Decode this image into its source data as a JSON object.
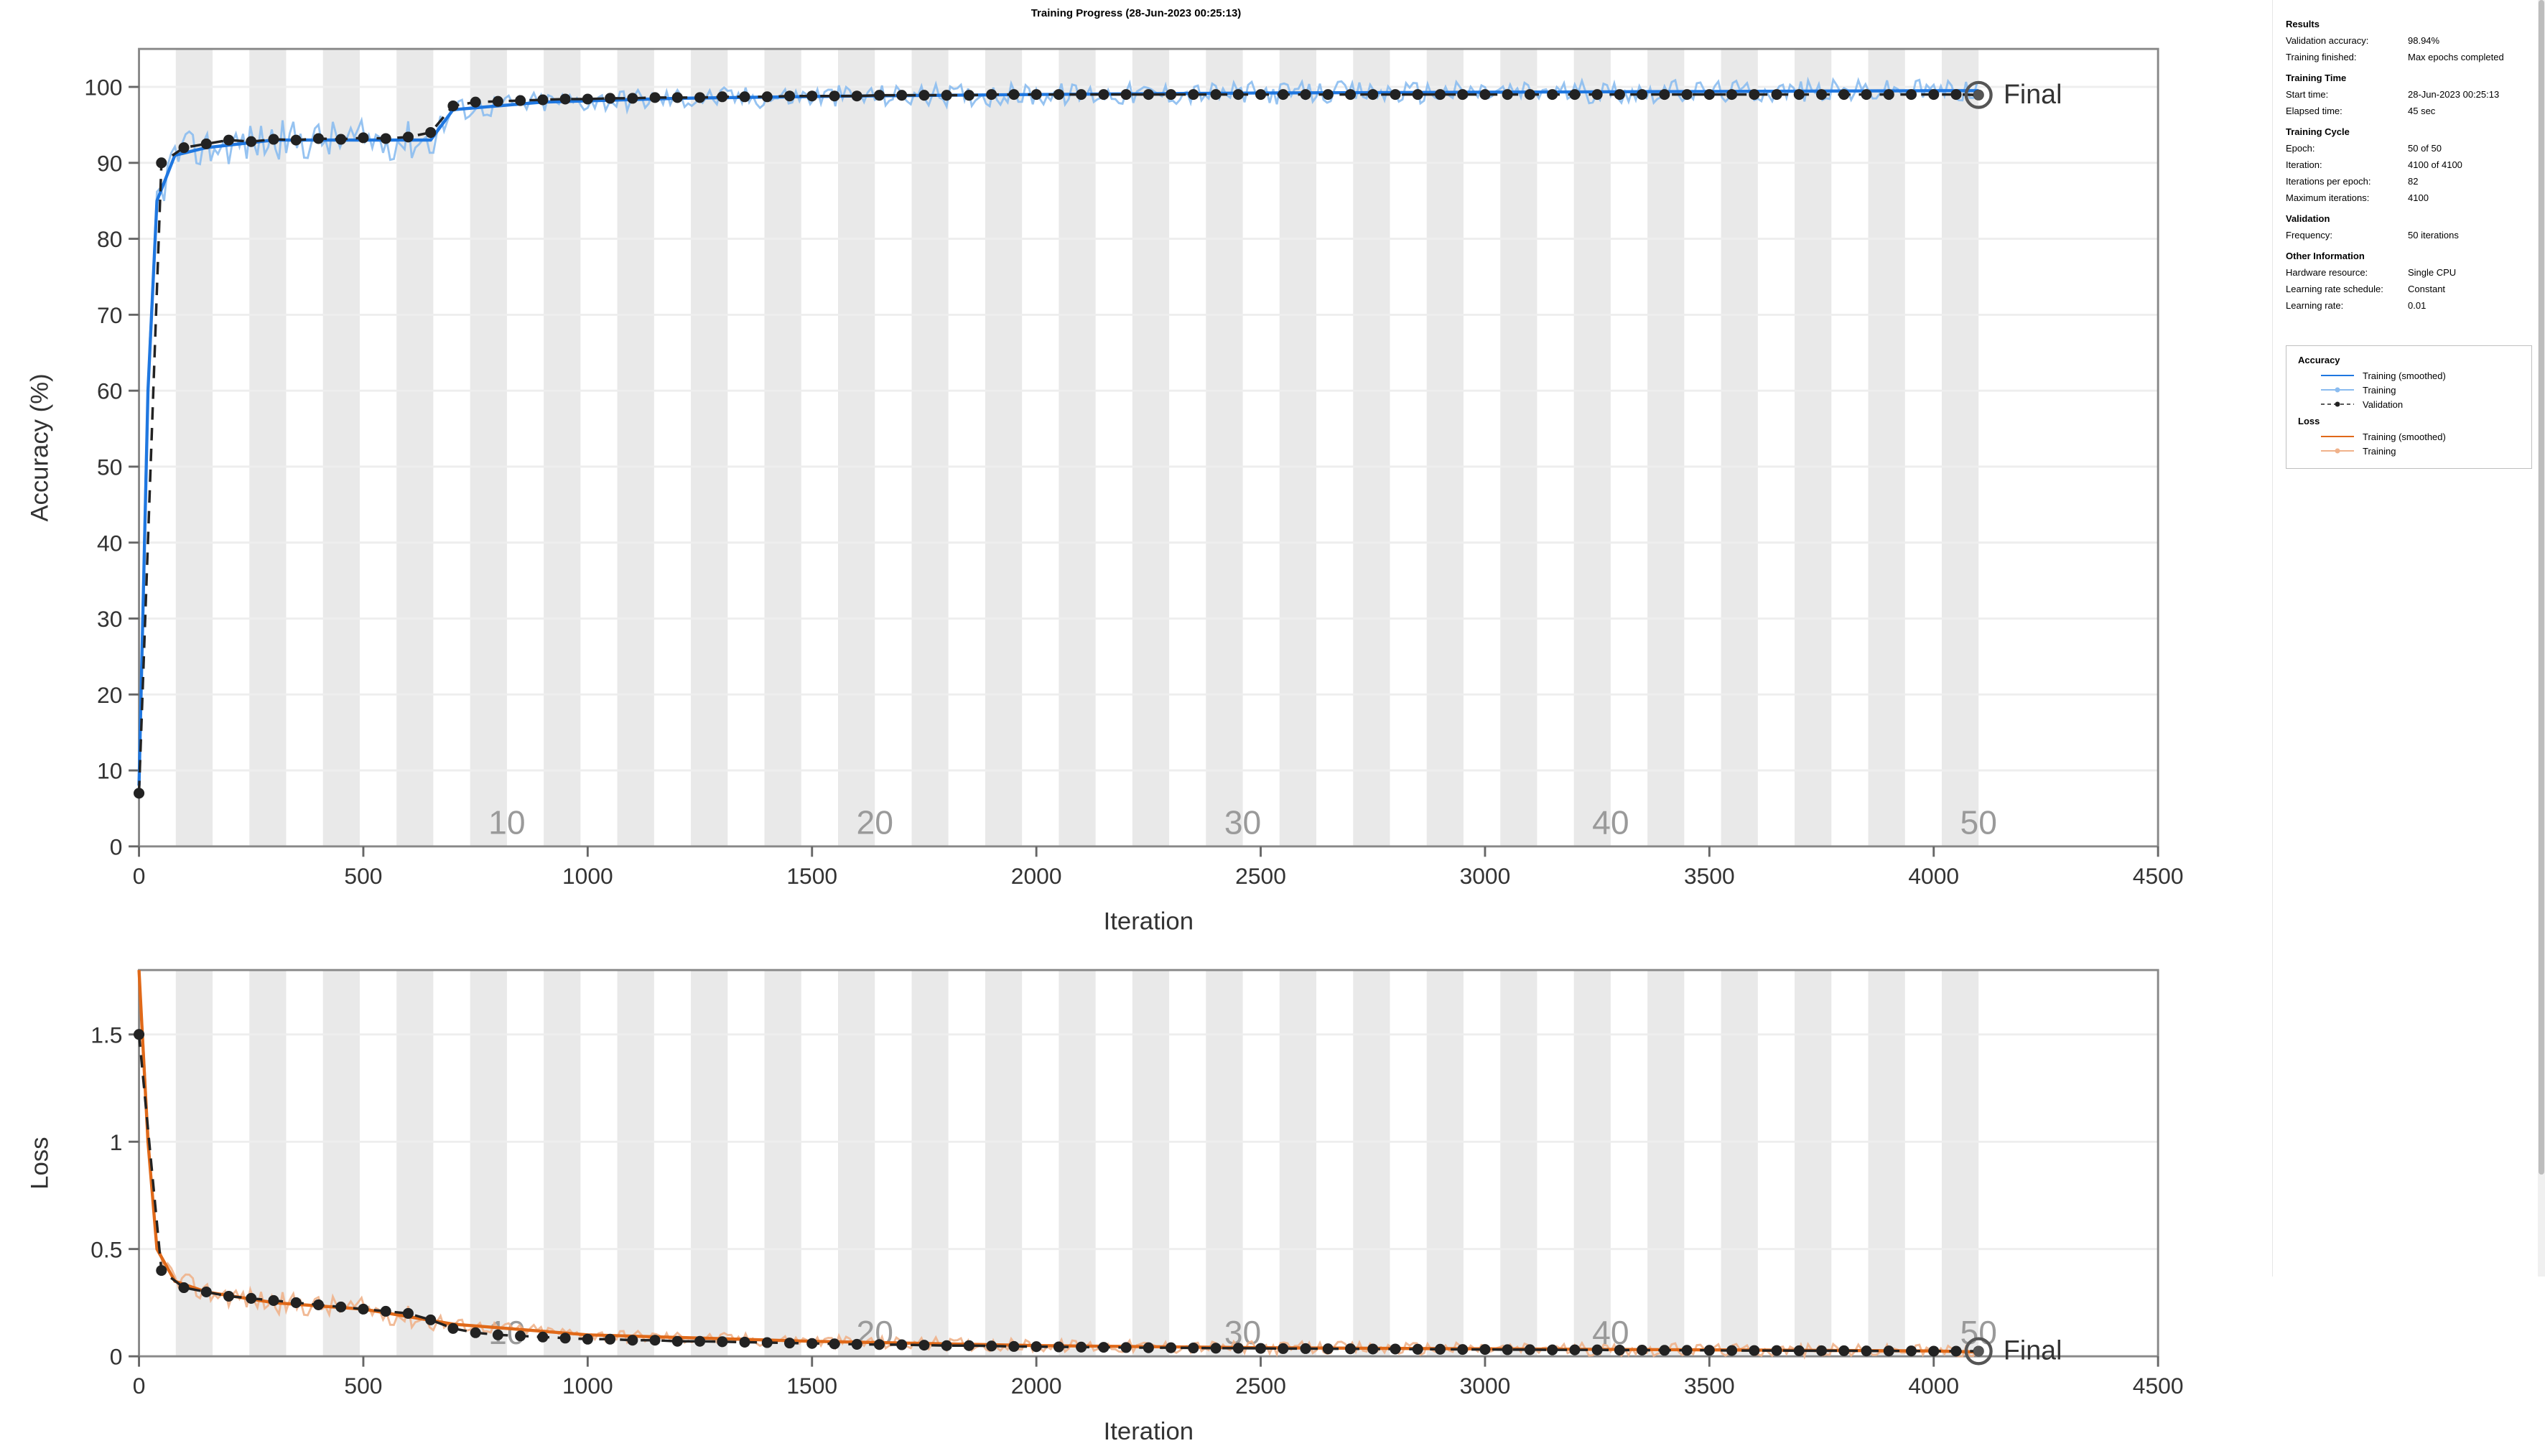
{
  "title": "Training Progress (28-Jun-2023 00:25:13)",
  "accuracy_chart": {
    "type": "line",
    "xlabel": "Iteration",
    "ylabel": "Accuracy (%)",
    "xlim": [
      0,
      4500
    ],
    "ylim": [
      0,
      105
    ],
    "xticks": [
      0,
      500,
      1000,
      1500,
      2000,
      2500,
      3000,
      3500,
      4000,
      4500
    ],
    "yticks": [
      0,
      10,
      20,
      30,
      40,
      50,
      60,
      70,
      80,
      90,
      100
    ],
    "epoch_markers": [
      10,
      20,
      30,
      40,
      50
    ],
    "iterations_per_epoch": 82,
    "max_iterations": 4100,
    "band_color": "#e9e9e9",
    "grid_color": "#d9d9d9",
    "axis_color": "#666666",
    "text_color": "#555555",
    "training_color": "#1f77e0",
    "training_light_color": "#8bbcf0",
    "validation_color": "#222222",
    "final_marker_color": "#888888",
    "final_label": "Final",
    "training_smoothed": [
      [
        0,
        8
      ],
      [
        20,
        60
      ],
      [
        40,
        85
      ],
      [
        80,
        91
      ],
      [
        150,
        92
      ],
      [
        300,
        93
      ],
      [
        500,
        93
      ],
      [
        650,
        93
      ],
      [
        700,
        97
      ],
      [
        900,
        98
      ],
      [
        1200,
        98.5
      ],
      [
        1600,
        98.8
      ],
      [
        2000,
        99
      ],
      [
        2500,
        99.2
      ],
      [
        3000,
        99.3
      ],
      [
        3500,
        99.4
      ],
      [
        4000,
        99.5
      ],
      [
        4100,
        99.5
      ]
    ],
    "training_noise_band": 3,
    "validation": [
      [
        0,
        7
      ],
      [
        50,
        90
      ],
      [
        100,
        92
      ],
      [
        150,
        92.5
      ],
      [
        200,
        93
      ],
      [
        250,
        92.8
      ],
      [
        300,
        93.1
      ],
      [
        350,
        93
      ],
      [
        400,
        93.2
      ],
      [
        450,
        93.1
      ],
      [
        500,
        93.3
      ],
      [
        550,
        93.2
      ],
      [
        600,
        93.4
      ],
      [
        650,
        94
      ],
      [
        700,
        97.5
      ],
      [
        750,
        98
      ],
      [
        800,
        98.1
      ],
      [
        850,
        98.2
      ],
      [
        900,
        98.3
      ],
      [
        950,
        98.4
      ],
      [
        1000,
        98.4
      ],
      [
        1050,
        98.5
      ],
      [
        1100,
        98.5
      ],
      [
        1150,
        98.6
      ],
      [
        1200,
        98.6
      ],
      [
        1250,
        98.6
      ],
      [
        1300,
        98.7
      ],
      [
        1350,
        98.7
      ],
      [
        1400,
        98.7
      ],
      [
        1450,
        98.8
      ],
      [
        1500,
        98.8
      ],
      [
        1550,
        98.8
      ],
      [
        1600,
        98.8
      ],
      [
        1650,
        98.9
      ],
      [
        1700,
        98.9
      ],
      [
        1750,
        98.9
      ],
      [
        1800,
        98.9
      ],
      [
        1850,
        98.9
      ],
      [
        1900,
        99
      ],
      [
        1950,
        99
      ],
      [
        2000,
        99
      ],
      [
        2050,
        99
      ],
      [
        2100,
        99
      ],
      [
        2150,
        99
      ],
      [
        2200,
        99
      ],
      [
        2250,
        99
      ],
      [
        2300,
        99
      ],
      [
        2350,
        99
      ],
      [
        2400,
        99
      ],
      [
        2450,
        99
      ],
      [
        2500,
        99
      ],
      [
        2550,
        99
      ],
      [
        2600,
        99
      ],
      [
        2650,
        99
      ],
      [
        2700,
        99
      ],
      [
        2750,
        99
      ],
      [
        2800,
        99
      ],
      [
        2850,
        99
      ],
      [
        2900,
        99
      ],
      [
        2950,
        99
      ],
      [
        3000,
        99
      ],
      [
        3050,
        99
      ],
      [
        3100,
        99
      ],
      [
        3150,
        99
      ],
      [
        3200,
        99
      ],
      [
        3250,
        99
      ],
      [
        3300,
        99
      ],
      [
        3350,
        99
      ],
      [
        3400,
        99
      ],
      [
        3450,
        99
      ],
      [
        3500,
        99
      ],
      [
        3550,
        99
      ],
      [
        3600,
        99
      ],
      [
        3650,
        99
      ],
      [
        3700,
        99
      ],
      [
        3750,
        99
      ],
      [
        3800,
        99
      ],
      [
        3850,
        99
      ],
      [
        3900,
        99
      ],
      [
        3950,
        99
      ],
      [
        4000,
        99
      ],
      [
        4050,
        99
      ],
      [
        4100,
        98.94
      ]
    ]
  },
  "loss_chart": {
    "type": "line",
    "xlabel": "Iteration",
    "ylabel": "Loss",
    "xlim": [
      0,
      4500
    ],
    "ylim": [
      0,
      1.8
    ],
    "xticks": [
      0,
      500,
      1000,
      1500,
      2000,
      2500,
      3000,
      3500,
      4000,
      4500
    ],
    "yticks": [
      0,
      0.5,
      1,
      1.5
    ],
    "epoch_markers": [
      10,
      20,
      30,
      40,
      50
    ],
    "iterations_per_epoch": 82,
    "max_iterations": 4100,
    "band_color": "#e9e9e9",
    "training_color": "#e06919",
    "training_light_color": "#f0b28b",
    "validation_color": "#222222",
    "final_label": "Final",
    "training_smoothed": [
      [
        0,
        1.8
      ],
      [
        20,
        1.0
      ],
      [
        40,
        0.5
      ],
      [
        80,
        0.35
      ],
      [
        150,
        0.3
      ],
      [
        300,
        0.25
      ],
      [
        500,
        0.22
      ],
      [
        700,
        0.15
      ],
      [
        1000,
        0.1
      ],
      [
        1500,
        0.07
      ],
      [
        2000,
        0.05
      ],
      [
        2500,
        0.04
      ],
      [
        3000,
        0.035
      ],
      [
        3500,
        0.03
      ],
      [
        4000,
        0.025
      ],
      [
        4100,
        0.02
      ]
    ],
    "training_noise_band": 0.06,
    "validation": [
      [
        0,
        1.5
      ],
      [
        50,
        0.4
      ],
      [
        100,
        0.32
      ],
      [
        150,
        0.3
      ],
      [
        200,
        0.28
      ],
      [
        250,
        0.27
      ],
      [
        300,
        0.26
      ],
      [
        350,
        0.25
      ],
      [
        400,
        0.24
      ],
      [
        450,
        0.23
      ],
      [
        500,
        0.22
      ],
      [
        550,
        0.21
      ],
      [
        600,
        0.2
      ],
      [
        650,
        0.17
      ],
      [
        700,
        0.13
      ],
      [
        750,
        0.11
      ],
      [
        800,
        0.1
      ],
      [
        850,
        0.095
      ],
      [
        900,
        0.09
      ],
      [
        950,
        0.085
      ],
      [
        1000,
        0.08
      ],
      [
        1050,
        0.08
      ],
      [
        1100,
        0.075
      ],
      [
        1150,
        0.075
      ],
      [
        1200,
        0.07
      ],
      [
        1250,
        0.07
      ],
      [
        1300,
        0.068
      ],
      [
        1350,
        0.066
      ],
      [
        1400,
        0.064
      ],
      [
        1450,
        0.062
      ],
      [
        1500,
        0.06
      ],
      [
        1550,
        0.058
      ],
      [
        1600,
        0.056
      ],
      [
        1650,
        0.055
      ],
      [
        1700,
        0.054
      ],
      [
        1750,
        0.052
      ],
      [
        1800,
        0.05
      ],
      [
        1850,
        0.05
      ],
      [
        1900,
        0.048
      ],
      [
        1950,
        0.046
      ],
      [
        2000,
        0.045
      ],
      [
        2050,
        0.044
      ],
      [
        2100,
        0.043
      ],
      [
        2150,
        0.042
      ],
      [
        2200,
        0.041
      ],
      [
        2250,
        0.04
      ],
      [
        2300,
        0.04
      ],
      [
        2350,
        0.039
      ],
      [
        2400,
        0.038
      ],
      [
        2450,
        0.038
      ],
      [
        2500,
        0.037
      ],
      [
        2550,
        0.036
      ],
      [
        2600,
        0.036
      ],
      [
        2650,
        0.035
      ],
      [
        2700,
        0.035
      ],
      [
        2750,
        0.034
      ],
      [
        2800,
        0.034
      ],
      [
        2850,
        0.033
      ],
      [
        2900,
        0.033
      ],
      [
        2950,
        0.032
      ],
      [
        3000,
        0.032
      ],
      [
        3050,
        0.031
      ],
      [
        3100,
        0.031
      ],
      [
        3150,
        0.03
      ],
      [
        3200,
        0.03
      ],
      [
        3250,
        0.03
      ],
      [
        3300,
        0.029
      ],
      [
        3350,
        0.029
      ],
      [
        3400,
        0.028
      ],
      [
        3450,
        0.028
      ],
      [
        3500,
        0.028
      ],
      [
        3550,
        0.027
      ],
      [
        3600,
        0.027
      ],
      [
        3650,
        0.027
      ],
      [
        3700,
        0.026
      ],
      [
        3750,
        0.026
      ],
      [
        3800,
        0.026
      ],
      [
        3850,
        0.025
      ],
      [
        3900,
        0.025
      ],
      [
        3950,
        0.025
      ],
      [
        4000,
        0.024
      ],
      [
        4050,
        0.024
      ],
      [
        4100,
        0.024
      ]
    ]
  },
  "results": {
    "heading": "Results",
    "rows": [
      {
        "label": "Validation accuracy:",
        "value": "98.94%"
      },
      {
        "label": "Training finished:",
        "value": "Max epochs completed"
      }
    ]
  },
  "training_time": {
    "heading": "Training Time",
    "rows": [
      {
        "label": "Start time:",
        "value": "28-Jun-2023 00:25:13"
      },
      {
        "label": "Elapsed time:",
        "value": "45 sec"
      }
    ]
  },
  "training_cycle": {
    "heading": "Training Cycle",
    "rows": [
      {
        "label": "Epoch:",
        "value": "50 of 50"
      },
      {
        "label": "Iteration:",
        "value": "4100 of 4100"
      },
      {
        "label": "Iterations per epoch:",
        "value": "82"
      },
      {
        "label": "Maximum iterations:",
        "value": "4100"
      }
    ]
  },
  "validation": {
    "heading": "Validation",
    "rows": [
      {
        "label": "Frequency:",
        "value": "50 iterations"
      }
    ]
  },
  "other_info": {
    "heading": "Other Information",
    "rows": [
      {
        "label": "Hardware resource:",
        "value": "Single CPU"
      },
      {
        "label": "Learning rate schedule:",
        "value": "Constant"
      },
      {
        "label": "Learning rate:",
        "value": "0.01"
      }
    ]
  },
  "legend": {
    "accuracy_heading": "Accuracy",
    "loss_heading": "Loss",
    "items_accuracy": [
      {
        "kind": "line",
        "color": "#1f77e0",
        "label": "Training (smoothed)"
      },
      {
        "kind": "line-light",
        "color": "#8bbcf0",
        "marker": true,
        "label": "Training"
      },
      {
        "kind": "dash-marker",
        "color": "#222222",
        "label": "Validation"
      }
    ],
    "items_loss": [
      {
        "kind": "line",
        "color": "#e06919",
        "label": "Training (smoothed)"
      },
      {
        "kind": "line-light",
        "color": "#f0b28b",
        "marker": true,
        "label": "Training"
      }
    ]
  },
  "axis_fontsize": 12,
  "tick_fontsize": 11
}
